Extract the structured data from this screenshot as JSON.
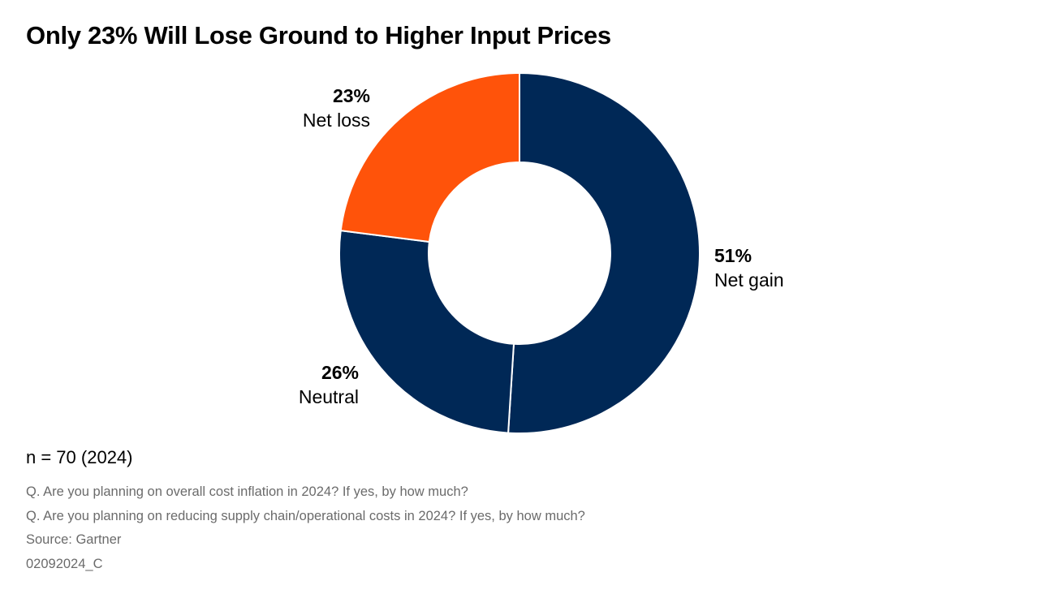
{
  "title": "Only 23% Will Lose Ground to Higher Input Prices",
  "chart_data": {
    "type": "pie",
    "donut": true,
    "categories": [
      "Net gain",
      "Neutral",
      "Net loss"
    ],
    "values": [
      51,
      26,
      23
    ],
    "value_labels": [
      "51%",
      "26%",
      "23%"
    ],
    "colors": [
      "#002856",
      "#002856",
      "#FF530A"
    ],
    "legend": "none"
  },
  "footer": {
    "sample": "n = 70 (2024)",
    "questions": [
      "Q. Are you planning on overall cost inflation in 2024? If yes, by how much?",
      "Q. Are you planning on reducing supply chain/operational costs in 2024? If yes, by how much?"
    ],
    "source": "Source: Gartner",
    "code": "02092024_C"
  }
}
